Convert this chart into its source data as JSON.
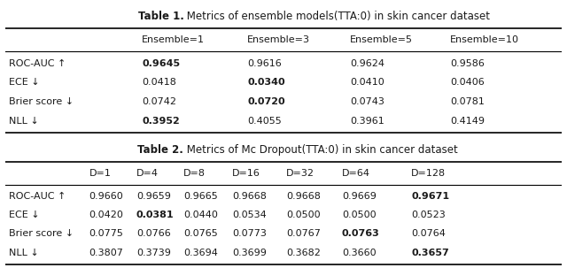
{
  "table1_title_bold": "Table 1.",
  "table1_title_normal": " Metrics of ensemble models(TTA:0) in skin cancer dataset",
  "table1_cols": [
    "",
    "Ensemble=1",
    "Ensemble=3",
    "Ensemble=5",
    "Ensemble=10"
  ],
  "table1_rows": [
    [
      "ROC-AUC ↑",
      "0.9645",
      "0.9616",
      "0.9624",
      "0.9586"
    ],
    [
      "ECE ↓",
      "0.0418",
      "0.0340",
      "0.0410",
      "0.0406"
    ],
    [
      "Brier score ↓",
      "0.0742",
      "0.0720",
      "0.0743",
      "0.0781"
    ],
    [
      "NLL ↓",
      "0.3952",
      "0.4055",
      "0.3961",
      "0.4149"
    ]
  ],
  "table1_bold_rc": [
    [
      0,
      1
    ],
    [
      1,
      2
    ],
    [
      2,
      2
    ],
    [
      3,
      1
    ]
  ],
  "table2_title_bold": "Table 2.",
  "table2_title_normal": " Metrics of Mc Dropout(TTA:0) in skin cancer dataset",
  "table2_cols": [
    "",
    "D=1",
    "D=4",
    "D=8",
    "D=16",
    "D=32",
    "D=64",
    "D=128"
  ],
  "table2_rows": [
    [
      "ROC-AUC ↑",
      "0.9660",
      "0.9659",
      "0.9665",
      "0.9668",
      "0.9668",
      "0.9669",
      "0.9671"
    ],
    [
      "ECE ↓",
      "0.0420",
      "0.0381",
      "0.0440",
      "0.0534",
      "0.0500",
      "0.0500",
      "0.0523"
    ],
    [
      "Brier score ↓",
      "0.0775",
      "0.0766",
      "0.0765",
      "0.0773",
      "0.0767",
      "0.0763",
      "0.0764"
    ],
    [
      "NLL ↓",
      "0.3807",
      "0.3739",
      "0.3694",
      "0.3699",
      "0.3682",
      "0.3660",
      "0.3657"
    ]
  ],
  "table2_bold_rc": [
    [
      0,
      7
    ],
    [
      1,
      2
    ],
    [
      2,
      6
    ],
    [
      3,
      7
    ]
  ],
  "bg_color": "#ffffff",
  "text_color": "#1a1a1a",
  "fontsize": 8.0,
  "title_fontsize": 8.5
}
